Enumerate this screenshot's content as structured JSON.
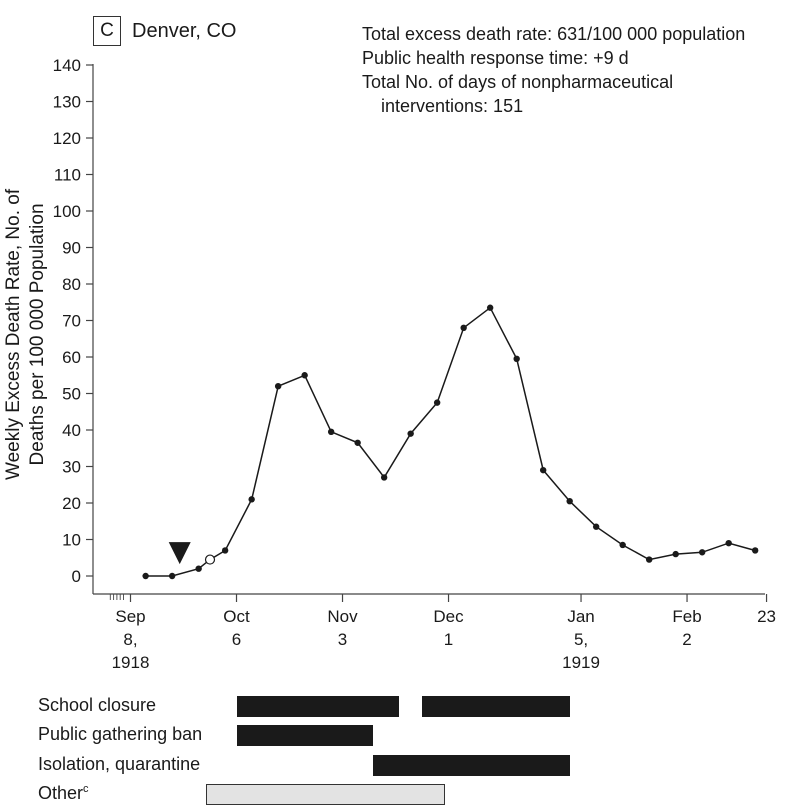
{
  "panel": {
    "letter": "C",
    "city": "Denver, CO"
  },
  "stats": {
    "line1": "Total excess death rate: 631/100 000 population",
    "line2": "Public health response time: +9 d",
    "line3": "Total No. of days of nonpharmaceutical",
    "line4": "interventions: 151"
  },
  "chart_data": {
    "type": "line",
    "title": "",
    "ylabel_line1": "Weekly Excess Death Rate, No. of",
    "ylabel_line2": "Deaths per 100 000 Population",
    "ylim": [
      0,
      140
    ],
    "yticks": [
      0,
      10,
      20,
      30,
      40,
      50,
      60,
      70,
      80,
      90,
      100,
      110,
      120,
      130,
      140
    ],
    "x_tick_labels": [
      {
        "date": "1918-09-08",
        "lines": [
          "Sep",
          "8,",
          "1918"
        ]
      },
      {
        "date": "1918-10-06",
        "lines": [
          "Oct",
          "6"
        ]
      },
      {
        "date": "1918-11-03",
        "lines": [
          "Nov",
          "3"
        ]
      },
      {
        "date": "1918-12-01",
        "lines": [
          "Dec",
          "1"
        ]
      },
      {
        "date": "1919-01-05",
        "lines": [
          "Jan",
          "5,",
          "1919"
        ]
      },
      {
        "date": "1919-02-02",
        "lines": [
          "Feb",
          "2"
        ]
      },
      {
        "date": "1919-02-23",
        "lines": [
          "23"
        ]
      }
    ],
    "series": [
      {
        "points": [
          {
            "x": "1918-09-12",
            "y": 0
          },
          {
            "x": "1918-09-19",
            "y": 0
          },
          {
            "x": "1918-09-26",
            "y": 2
          },
          {
            "x": "1918-09-29",
            "y": 4.5,
            "open": true
          },
          {
            "x": "1918-10-03",
            "y": 7
          },
          {
            "x": "1918-10-10",
            "y": 21
          },
          {
            "x": "1918-10-17",
            "y": 52
          },
          {
            "x": "1918-10-24",
            "y": 55
          },
          {
            "x": "1918-10-31",
            "y": 39.5
          },
          {
            "x": "1918-11-07",
            "y": 36.5
          },
          {
            "x": "1918-11-14",
            "y": 27
          },
          {
            "x": "1918-11-21",
            "y": 39
          },
          {
            "x": "1918-11-28",
            "y": 47.5
          },
          {
            "x": "1918-12-05",
            "y": 68
          },
          {
            "x": "1918-12-12",
            "y": 73.5
          },
          {
            "x": "1918-12-19",
            "y": 59.5
          },
          {
            "x": "1918-12-26",
            "y": 29
          },
          {
            "x": "1919-01-02",
            "y": 20.5
          },
          {
            "x": "1919-01-09",
            "y": 13.5
          },
          {
            "x": "1919-01-16",
            "y": 8.5
          },
          {
            "x": "1919-01-23",
            "y": 4.5
          },
          {
            "x": "1919-01-30",
            "y": 6
          },
          {
            "x": "1919-02-06",
            "y": 6.5
          },
          {
            "x": "1919-02-13",
            "y": 9
          },
          {
            "x": "1919-02-20",
            "y": 7
          }
        ]
      }
    ],
    "marker": {
      "type": "triangle-down",
      "x": "1918-09-21",
      "y": 6
    },
    "colors": {
      "line": "#1a1a1a",
      "bar_black": "#1a1a1a",
      "bar_gray": "#e3e3e3"
    }
  },
  "interventions": [
    {
      "label": "School closure",
      "sup": "",
      "periods": [
        {
          "start": "1918-10-06",
          "end": "1918-11-18",
          "style": "black"
        },
        {
          "start": "1918-11-24",
          "end": "1919-01-02",
          "style": "black"
        }
      ]
    },
    {
      "label": "Public gathering ban",
      "sup": "",
      "periods": [
        {
          "start": "1918-10-06",
          "end": "1918-11-11",
          "style": "black"
        }
      ]
    },
    {
      "label": "Isolation, quarantine",
      "sup": "",
      "periods": [
        {
          "start": "1918-11-11",
          "end": "1919-01-02",
          "style": "black"
        }
      ]
    },
    {
      "label": "Other",
      "sup": "c",
      "periods": [
        {
          "start": "1918-09-28",
          "end": "1918-11-30",
          "style": "gray"
        }
      ]
    }
  ]
}
